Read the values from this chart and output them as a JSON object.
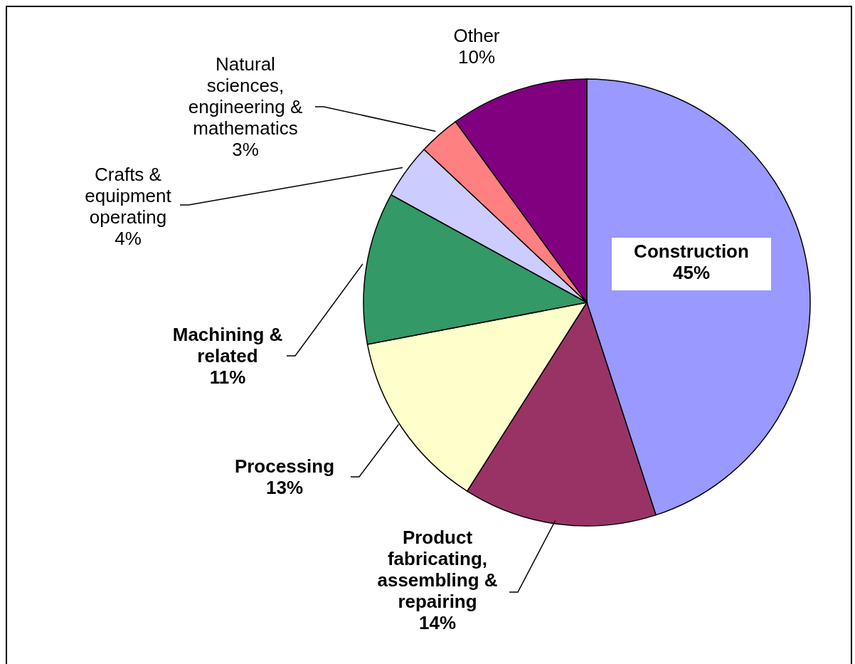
{
  "chart_data": {
    "type": "pie",
    "categories": [
      "Construction",
      "Product fabricating, assembling & repairing",
      "Processing",
      "Machining & related",
      "Crafts & equipment operating",
      "Natural sciences, engineering & mathematics",
      "Other"
    ],
    "values": [
      45,
      14,
      13,
      11,
      4,
      3,
      10
    ],
    "colors": [
      "#9999ff",
      "#993366",
      "#ffffcc",
      "#339966",
      "#ccccff",
      "#ff8080",
      "#800080"
    ],
    "value_labels": [
      "45%",
      "14%",
      "13%",
      "11%",
      "4%",
      "3%",
      "10%"
    ]
  }
}
